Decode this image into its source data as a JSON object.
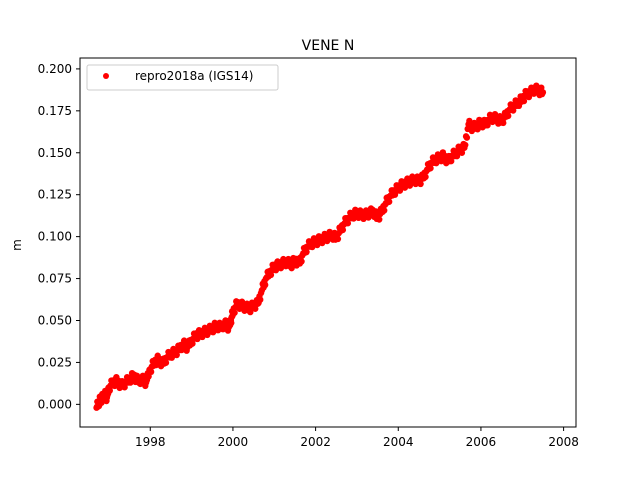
{
  "chart_data": {
    "type": "scatter",
    "title": "VENE N",
    "xlabel": "",
    "ylabel": "m",
    "xlim": [
      1996.3,
      2008.3
    ],
    "ylim": [
      -0.0135,
      0.2065
    ],
    "x_ticks": [
      1998,
      2000,
      2002,
      2004,
      2006,
      2008
    ],
    "x_tick_labels": [
      "1998",
      "2000",
      "2002",
      "2004",
      "2006",
      "2008"
    ],
    "y_ticks": [
      0.0,
      0.025,
      0.05,
      0.075,
      0.1,
      0.125,
      0.15,
      0.175,
      0.2
    ],
    "y_tick_labels": [
      "0.000",
      "0.025",
      "0.050",
      "0.075",
      "0.100",
      "0.125",
      "0.150",
      "0.175",
      "0.200"
    ],
    "grid": false,
    "legend_position": "top-left",
    "series": [
      {
        "name": "repro2018a (IGS14)",
        "color": "#ff0000",
        "marker": "dot",
        "x": [
          1996.7,
          1996.75,
          1996.8,
          1996.85,
          1996.9,
          1996.95,
          1997.0,
          1997.1,
          1997.2,
          1997.3,
          1997.4,
          1997.5,
          1997.6,
          1997.7,
          1997.8,
          1997.9,
          1998.0,
          1998.1,
          1998.2,
          1998.3,
          1998.4,
          1998.5,
          1998.6,
          1998.7,
          1998.8,
          1998.9,
          1999.0,
          1999.1,
          1999.2,
          1999.3,
          1999.4,
          1999.5,
          1999.6,
          1999.7,
          1999.8,
          1999.9,
          1999.95,
          2000.0,
          2000.1,
          2000.2,
          2000.3,
          2000.4,
          2000.5,
          2000.6,
          2000.7,
          2000.8,
          2000.9,
          2001.0,
          2001.1,
          2001.2,
          2001.3,
          2001.4,
          2001.5,
          2001.6,
          2001.7,
          2001.8,
          2001.9,
          2002.0,
          2002.1,
          2002.2,
          2002.3,
          2002.4,
          2002.5,
          2002.6,
          2002.7,
          2002.8,
          2002.9,
          2003.0,
          2003.1,
          2003.2,
          2003.3,
          2003.4,
          2003.5,
          2003.6,
          2003.7,
          2003.8,
          2003.9,
          2004.0,
          2004.1,
          2004.2,
          2004.3,
          2004.4,
          2004.5,
          2004.6,
          2004.7,
          2004.8,
          2004.9,
          2005.0,
          2005.1,
          2005.2,
          2005.3,
          2005.4,
          2005.5,
          2005.6,
          2005.7,
          2005.8,
          2005.9,
          2006.0,
          2006.1,
          2006.2,
          2006.3,
          2006.4,
          2006.5,
          2006.6,
          2006.7,
          2006.8,
          2006.9,
          2007.0,
          2007.1,
          2007.2,
          2007.3,
          2007.4,
          2007.5
        ],
        "y": [
          -0.002,
          0.001,
          0.003,
          0.004,
          0.006,
          0.004,
          0.01,
          0.013,
          0.014,
          0.011,
          0.013,
          0.015,
          0.017,
          0.014,
          0.015,
          0.013,
          0.021,
          0.025,
          0.027,
          0.024,
          0.028,
          0.03,
          0.031,
          0.033,
          0.036,
          0.034,
          0.038,
          0.041,
          0.042,
          0.043,
          0.044,
          0.045,
          0.047,
          0.046,
          0.048,
          0.046,
          0.05,
          0.055,
          0.06,
          0.059,
          0.058,
          0.057,
          0.059,
          0.06,
          0.068,
          0.075,
          0.079,
          0.082,
          0.083,
          0.084,
          0.085,
          0.083,
          0.086,
          0.084,
          0.09,
          0.094,
          0.096,
          0.097,
          0.098,
          0.099,
          0.1,
          0.101,
          0.099,
          0.104,
          0.108,
          0.111,
          0.113,
          0.114,
          0.113,
          0.113,
          0.114,
          0.115,
          0.111,
          0.115,
          0.12,
          0.124,
          0.127,
          0.129,
          0.131,
          0.132,
          0.133,
          0.134,
          0.133,
          0.135,
          0.14,
          0.144,
          0.146,
          0.147,
          0.148,
          0.145,
          0.148,
          0.15,
          0.152,
          0.153,
          0.167,
          0.165,
          0.166,
          0.168,
          0.167,
          0.17,
          0.171,
          0.17,
          0.169,
          0.172,
          0.176,
          0.178,
          0.18,
          0.182,
          0.185,
          0.186,
          0.188,
          0.187,
          0.186
        ]
      }
    ]
  }
}
